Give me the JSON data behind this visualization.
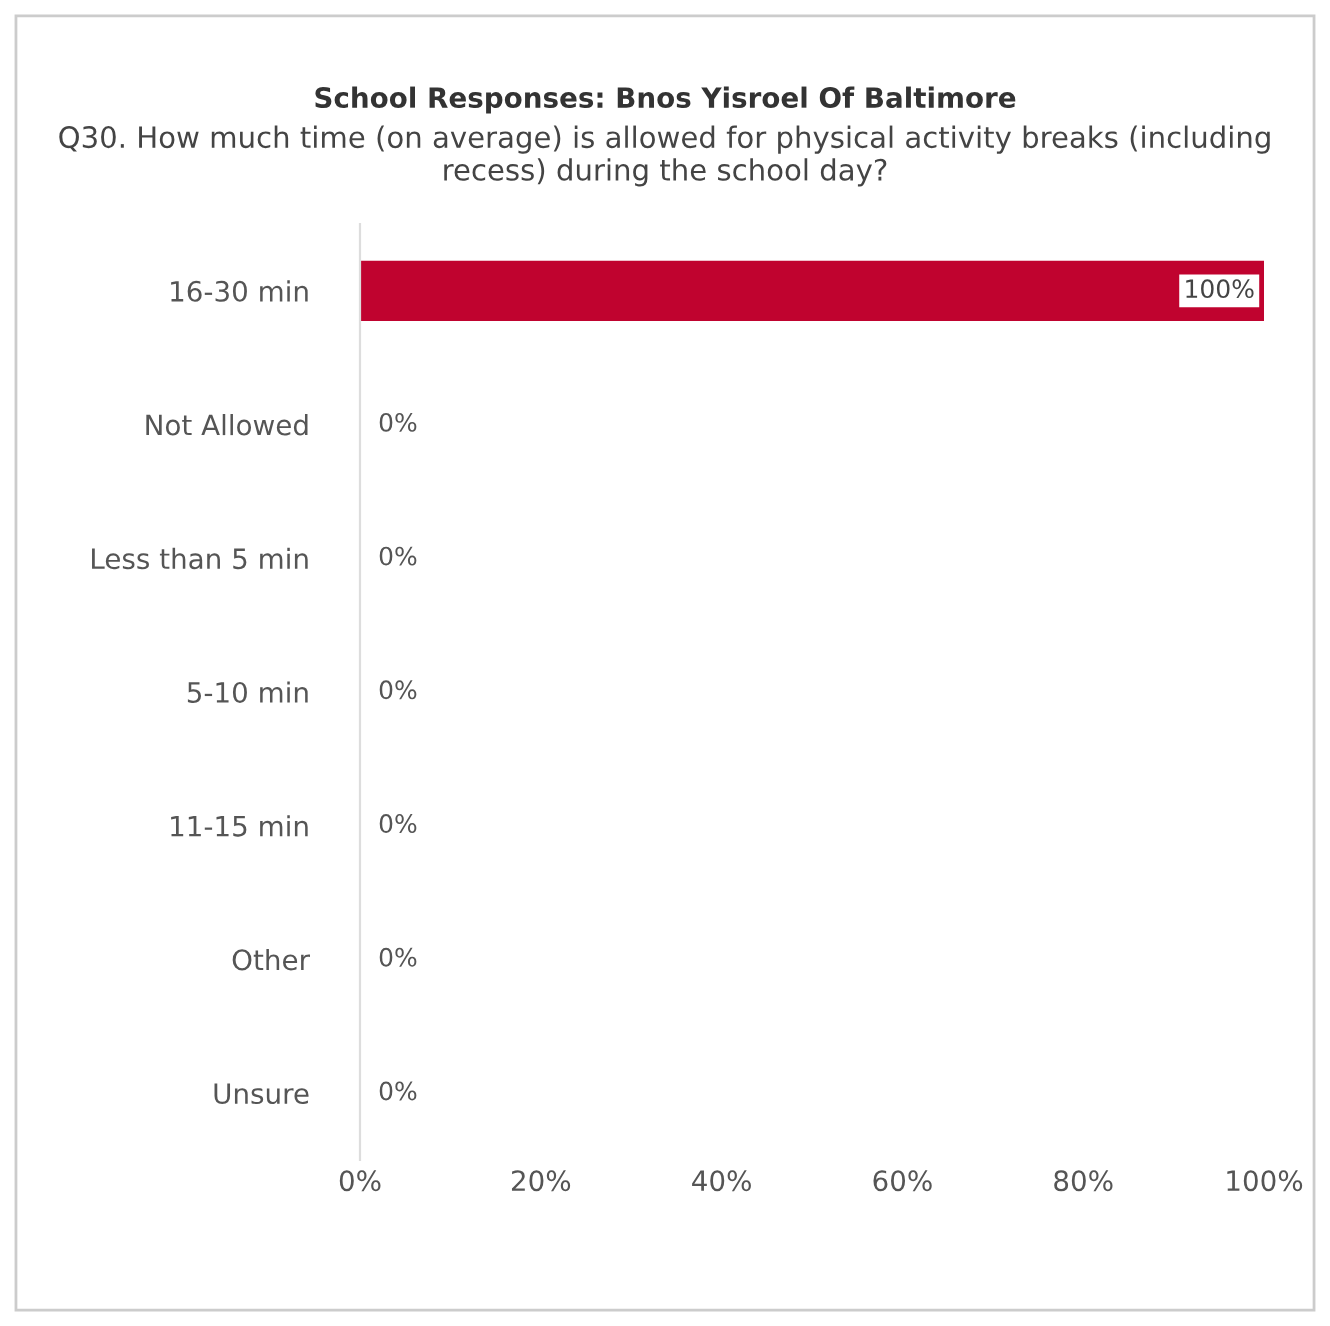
{
  "chart_data": {
    "type": "bar",
    "orientation": "horizontal",
    "title": "School Responses: Bnos Yisroel Of Baltimore",
    "subtitle": "Q30. How much time (on average) is allowed for physical activity breaks (including recess) during the school day?",
    "categories": [
      "16-30 min",
      "Not Allowed",
      "Less than 5 min",
      "5-10 min",
      "11-15 min",
      "Other",
      "Unsure"
    ],
    "values": [
      100,
      0,
      0,
      0,
      0,
      0,
      0
    ],
    "color": "#c0032f",
    "value_labels": [
      "100%",
      "0%",
      "0%",
      "0%",
      "0%",
      "0%",
      "0%"
    ],
    "xlim": [
      0,
      100
    ],
    "xticks": [
      {
        "value": 0,
        "label": "0%"
      },
      {
        "value": 20,
        "label": "20%"
      },
      {
        "value": 40,
        "label": "40%"
      },
      {
        "value": 60,
        "label": "60%"
      },
      {
        "value": 80,
        "label": "80%"
      },
      {
        "value": 100,
        "label": "100%"
      }
    ],
    "grid": false,
    "legend": false
  }
}
